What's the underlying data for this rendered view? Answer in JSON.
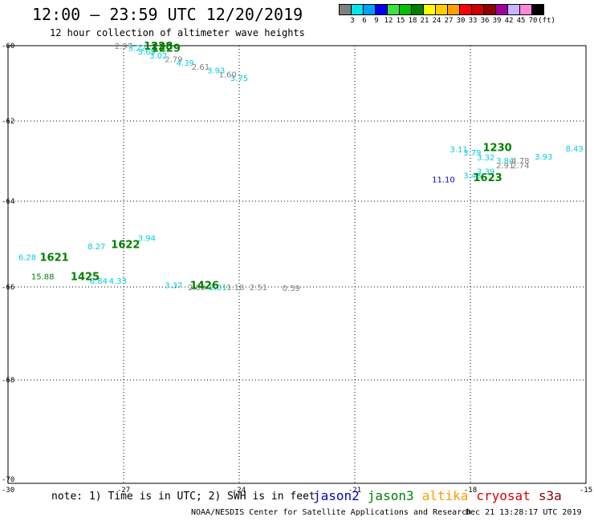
{
  "header": {
    "title": "12:00 – 23:59 UTC 12/20/2019",
    "subtitle": "12 hour collection of altimeter wave heights"
  },
  "legend": {
    "unit": "(ft)",
    "bins": [
      {
        "label": "3",
        "color": "#808080"
      },
      {
        "label": "6",
        "color": "#00e5ee"
      },
      {
        "label": "9",
        "color": "#00a0ff"
      },
      {
        "label": "12",
        "color": "#0000ee"
      },
      {
        "label": "15",
        "color": "#40e040"
      },
      {
        "label": "18",
        "color": "#00c000"
      },
      {
        "label": "21",
        "color": "#008000"
      },
      {
        "label": "24",
        "color": "#ffff00"
      },
      {
        "label": "27",
        "color": "#ffd000"
      },
      {
        "label": "30",
        "color": "#ffa000"
      },
      {
        "label": "33",
        "color": "#ff0000"
      },
      {
        "label": "36",
        "color": "#d00000"
      },
      {
        "label": "39",
        "color": "#900000"
      },
      {
        "label": "42",
        "color": "#a000a0"
      },
      {
        "label": "45",
        "color": "#c8b4ff"
      },
      {
        "label": "70",
        "color": "#ff88dd"
      },
      {
        "label": "",
        "color": "#000000"
      }
    ]
  },
  "map": {
    "lon_range": [
      -30,
      -15
    ],
    "lat_range": [
      -70,
      -60
    ],
    "lon_ticks": [
      "-30",
      "-27",
      "-24",
      "-21",
      "-18",
      "-15"
    ],
    "lat_ticks": [
      "-60",
      "-62",
      "-64",
      "-66",
      "-68",
      "-70"
    ],
    "colors": {
      "gray": "#808080",
      "cyan": "#00ccdd",
      "blue": "#0000cc",
      "green": "#008000"
    },
    "time_labels": [
      {
        "text": "1228",
        "lon": -26.1,
        "lat": -59.95
      },
      {
        "text": "1229",
        "lon": -25.9,
        "lat": -60.05
      },
      {
        "text": "1230",
        "lon": -17.3,
        "lat": -62.65
      },
      {
        "text": "1623",
        "lon": -17.55,
        "lat": -63.4
      },
      {
        "text": "1621",
        "lon": -28.8,
        "lat": -65.3
      },
      {
        "text": "1622",
        "lon": -26.95,
        "lat": -65.0
      },
      {
        "text": "1425",
        "lon": -28.0,
        "lat": -65.75
      },
      {
        "text": "1426",
        "lon": -24.9,
        "lat": -65.95
      }
    ],
    "swh_labels": [
      {
        "text": "2.97",
        "lon": -27.0,
        "lat": -59.95,
        "c": "gray"
      },
      {
        "text": "3.22",
        "lon": -26.65,
        "lat": -60.05,
        "c": "cyan"
      },
      {
        "text": "3.69",
        "lon": -26.4,
        "lat": -60.15,
        "c": "cyan"
      },
      {
        "text": "3.02",
        "lon": -26.1,
        "lat": -60.25,
        "c": "cyan"
      },
      {
        "text": "2.79",
        "lon": -25.7,
        "lat": -60.35,
        "c": "gray"
      },
      {
        "text": "4.39",
        "lon": -25.4,
        "lat": -60.45,
        "c": "cyan"
      },
      {
        "text": "2.61",
        "lon": -25.0,
        "lat": -60.55,
        "c": "gray"
      },
      {
        "text": "3.93",
        "lon": -24.6,
        "lat": -60.65,
        "c": "cyan"
      },
      {
        "text": "1.60",
        "lon": -24.3,
        "lat": -60.75,
        "c": "gray"
      },
      {
        "text": "3.75",
        "lon": -24.0,
        "lat": -60.85,
        "c": "cyan"
      },
      {
        "text": "3.11",
        "lon": -18.3,
        "lat": -62.7,
        "c": "cyan"
      },
      {
        "text": "3.79",
        "lon": -17.95,
        "lat": -62.78,
        "c": "cyan"
      },
      {
        "text": "3.32",
        "lon": -17.6,
        "lat": -62.9,
        "c": "cyan"
      },
      {
        "text": "3.84",
        "lon": -17.1,
        "lat": -62.98,
        "c": "cyan"
      },
      {
        "text": "4.78",
        "lon": -16.7,
        "lat": -62.98,
        "c": "gray"
      },
      {
        "text": "3.93",
        "lon": -16.1,
        "lat": -62.88,
        "c": "cyan"
      },
      {
        "text": "8.43",
        "lon": -15.3,
        "lat": -62.68,
        "c": "cyan"
      },
      {
        "text": "2.91",
        "lon": -17.1,
        "lat": -63.1,
        "c": "gray"
      },
      {
        "text": "2.74",
        "lon": -16.7,
        "lat": -63.1,
        "c": "gray"
      },
      {
        "text": "3.39",
        "lon": -17.6,
        "lat": -63.25,
        "c": "cyan"
      },
      {
        "text": "3.48",
        "lon": -17.95,
        "lat": -63.35,
        "c": "cyan"
      },
      {
        "text": "11.10",
        "lon": -18.7,
        "lat": -63.45,
        "c": "blue"
      },
      {
        "text": "6.28",
        "lon": -29.5,
        "lat": -65.3,
        "c": "cyan"
      },
      {
        "text": "8.27",
        "lon": -27.7,
        "lat": -65.05,
        "c": "cyan"
      },
      {
        "text": "3.94",
        "lon": -26.4,
        "lat": -64.85,
        "c": "cyan"
      },
      {
        "text": "15.88",
        "lon": -29.1,
        "lat": -65.75,
        "c": "green"
      },
      {
        "text": "6.84",
        "lon": -27.65,
        "lat": -65.85,
        "c": "cyan"
      },
      {
        "text": "4.33",
        "lon": -27.15,
        "lat": -65.85,
        "c": "cyan"
      },
      {
        "text": "3.37",
        "lon": -25.7,
        "lat": -65.95,
        "c": "cyan"
      },
      {
        "text": "2.09",
        "lon": -25.1,
        "lat": -66.0,
        "c": "gray"
      },
      {
        "text": "2.01",
        "lon": -24.55,
        "lat": -66.0,
        "c": "cyan"
      },
      {
        "text": "1.18",
        "lon": -24.1,
        "lat": -66.0,
        "c": "gray"
      },
      {
        "text": "2.51",
        "lon": -23.5,
        "lat": -66.0,
        "c": "gray"
      },
      {
        "text": "0.59",
        "lon": -22.65,
        "lat": -66.02,
        "c": "gray"
      }
    ]
  },
  "footer": {
    "note": "note: 1) Time is in UTC; 2) SWH is in feet",
    "satellites": [
      {
        "name": "jason2",
        "color": "#0000cc"
      },
      {
        "name": "jason3",
        "color": "#008000"
      },
      {
        "name": "altika",
        "color": "#ff9900"
      },
      {
        "name": "cryosat",
        "color": "#dd0000"
      },
      {
        "name": "s3a",
        "color": "#880000"
      }
    ],
    "credit": "NOAA/NESDIS Center for Satellite Applications and Research",
    "timestamp": "Dec 21 13:28:17 UTC 2019"
  }
}
